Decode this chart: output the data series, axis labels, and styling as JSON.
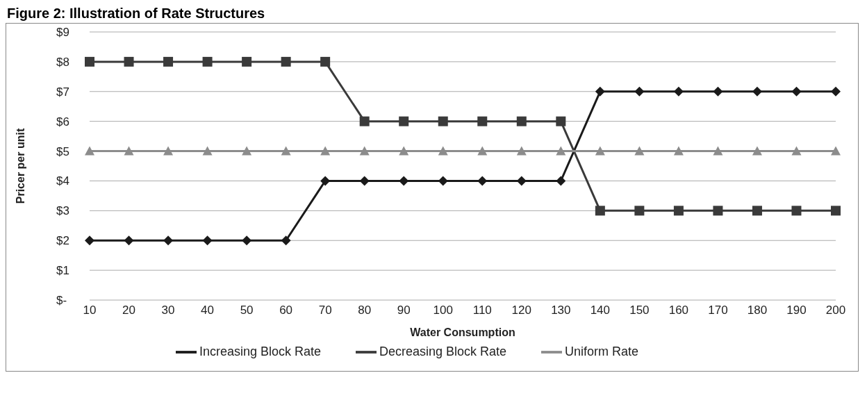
{
  "chart_data": {
    "type": "line",
    "title": "Figure 2: Illustration of Rate Structures",
    "xlabel": "Water Consumption",
    "ylabel": "Pricer per unit",
    "categories": [
      "10",
      "20",
      "30",
      "40",
      "50",
      "60",
      "70",
      "80",
      "90",
      "100",
      "110",
      "120",
      "130",
      "140",
      "150",
      "160",
      "170",
      "180",
      "190",
      "200"
    ],
    "series": [
      {
        "name": "Increasing Block Rate",
        "color": "#1a1a1a",
        "marker": "diamond",
        "values": [
          2,
          2,
          2,
          2,
          2,
          2,
          4,
          4,
          4,
          4,
          4,
          4,
          4,
          7,
          7,
          7,
          7,
          7,
          7,
          7
        ]
      },
      {
        "name": "Decreasing Block Rate",
        "color": "#3a3a3a",
        "marker": "square",
        "values": [
          8,
          8,
          8,
          8,
          8,
          8,
          8,
          6,
          6,
          6,
          6,
          6,
          6,
          3,
          3,
          3,
          3,
          3,
          3,
          3
        ]
      },
      {
        "name": "Uniform Rate",
        "color": "#8c8c8c",
        "marker": "triangle",
        "values": [
          5,
          5,
          5,
          5,
          5,
          5,
          5,
          5,
          5,
          5,
          5,
          5,
          5,
          5,
          5,
          5,
          5,
          5,
          5,
          5
        ]
      }
    ],
    "ylim": [
      0,
      9
    ],
    "yticks": [
      {
        "value": 0,
        "label": "$-"
      },
      {
        "value": 1,
        "label": "$1"
      },
      {
        "value": 2,
        "label": "$2"
      },
      {
        "value": 3,
        "label": "$3"
      },
      {
        "value": 4,
        "label": "$4"
      },
      {
        "value": 5,
        "label": "$5"
      },
      {
        "value": 6,
        "label": "$6"
      },
      {
        "value": 7,
        "label": "$7"
      },
      {
        "value": 8,
        "label": "$8"
      },
      {
        "value": 9,
        "label": "$9"
      }
    ],
    "grid": "y",
    "legend": "bottom",
    "line_style": "solid"
  }
}
